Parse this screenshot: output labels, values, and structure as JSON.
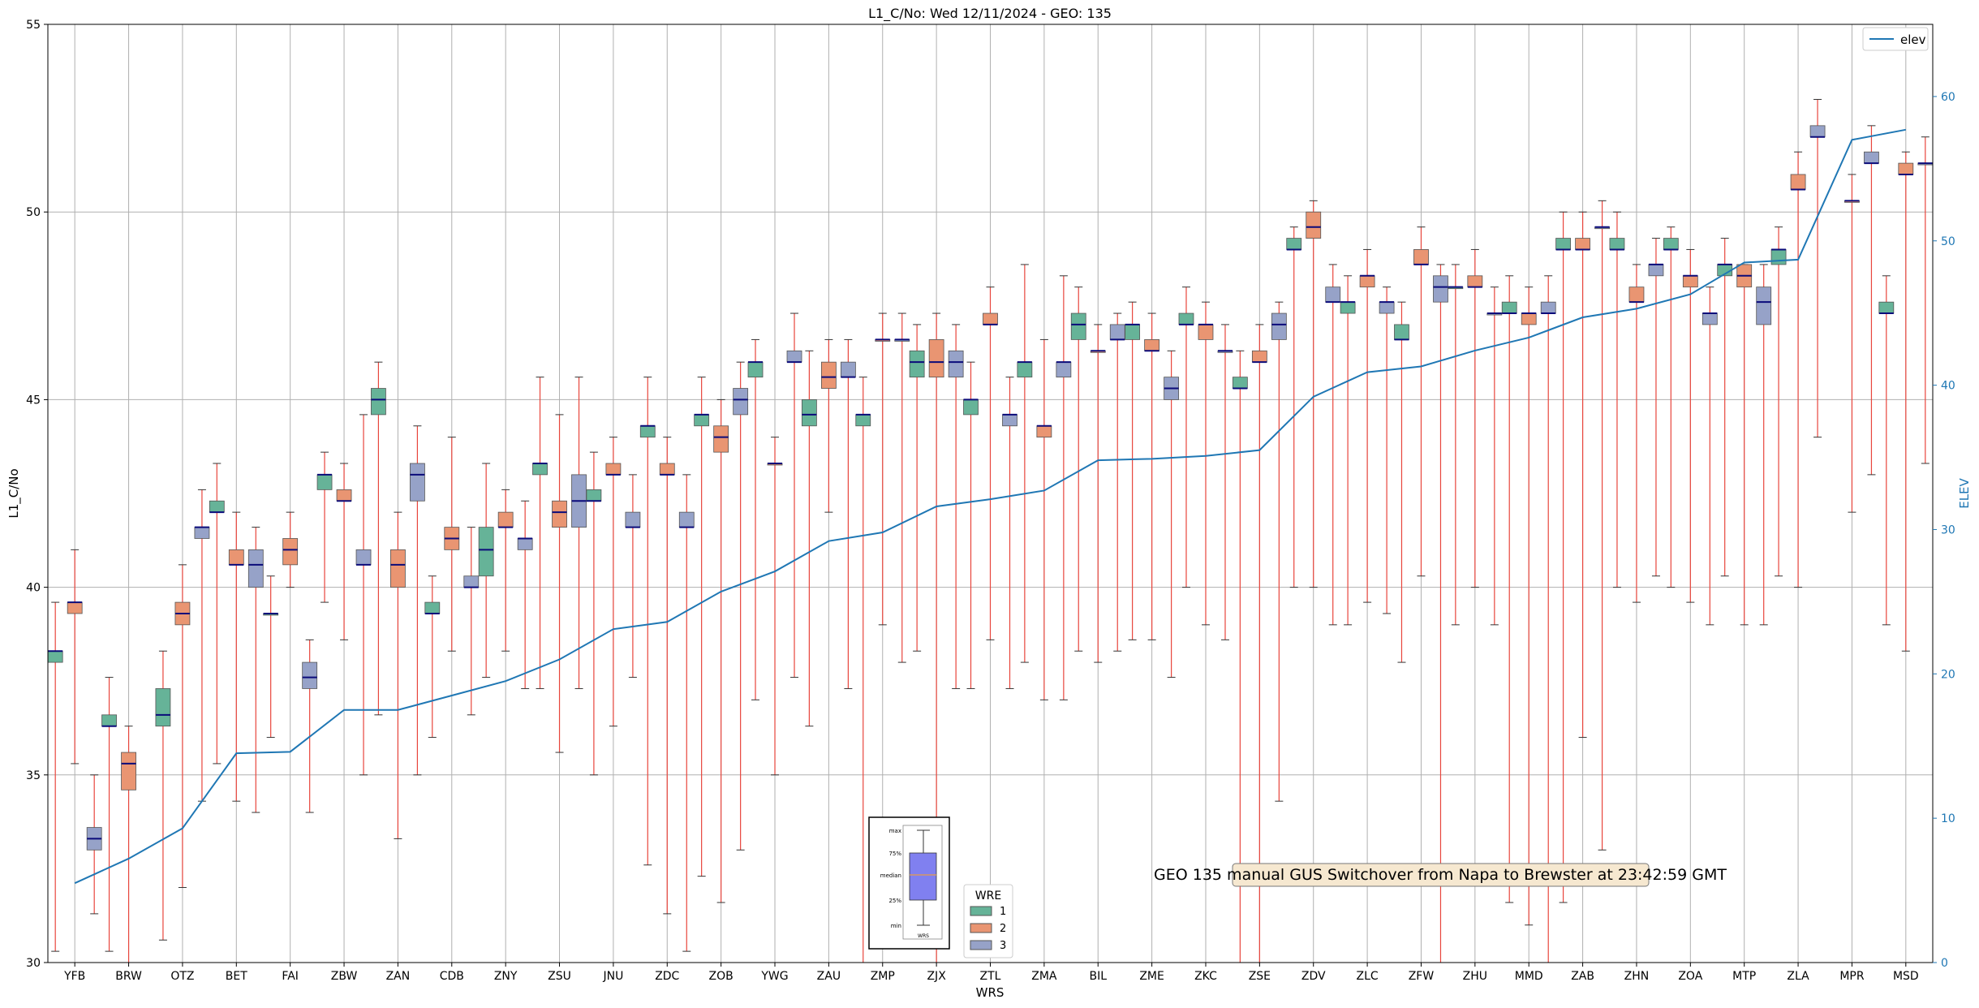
{
  "chart_data": {
    "type": "box",
    "title": "L1_C/No: Wed 12/11/2024 - GEO: 135",
    "xlabel": "WRS",
    "ylabel": "L1_C/No",
    "y2label": "ELEV",
    "ylim": [
      30,
      55
    ],
    "y2lim": [
      0,
      65
    ],
    "yticks": [
      30,
      35,
      40,
      45,
      50,
      55
    ],
    "y2ticks": [
      0,
      10,
      20,
      30,
      40,
      50,
      60
    ],
    "grid": true,
    "categories": [
      "YFB",
      "BRW",
      "OTZ",
      "BET",
      "FAI",
      "ZBW",
      "ZAN",
      "CDB",
      "ZNY",
      "ZSU",
      "JNU",
      "ZDC",
      "ZOB",
      "YWG",
      "ZAU",
      "ZMP",
      "ZJX",
      "ZTL",
      "ZMA",
      "BIL",
      "ZME",
      "ZKC",
      "ZSE",
      "ZDV",
      "ZLC",
      "ZFW",
      "ZHU",
      "MMD",
      "ZAB",
      "ZHN",
      "ZOA",
      "MTP",
      "ZLA",
      "MPR",
      "MSD"
    ],
    "wre_colors": {
      "1": "#66b398",
      "2": "#e99572",
      "3": "#96a2c8"
    },
    "whisker_color": "#e8453c",
    "median_color": "#0b0b7a",
    "elev_color": "#1f77b4",
    "boxes": [
      {
        "cat": 0,
        "wre": 1,
        "min": 30.3,
        "q1": 38.0,
        "med": 38.3,
        "q3": 38.3,
        "max": 39.6
      },
      {
        "cat": 0,
        "wre": 2,
        "min": 35.3,
        "q1": 39.3,
        "med": 39.6,
        "q3": 39.6,
        "max": 41.0
      },
      {
        "cat": 0,
        "wre": 3,
        "min": 31.3,
        "q1": 33.0,
        "med": 33.3,
        "q3": 33.6,
        "max": 35.0
      },
      {
        "cat": 1,
        "wre": 1,
        "min": 30.3,
        "q1": 36.3,
        "med": 36.3,
        "q3": 36.6,
        "max": 37.6
      },
      {
        "cat": 1,
        "wre": 2,
        "min": 30.0,
        "q1": 34.6,
        "med": 35.3,
        "q3": 35.6,
        "max": 36.3
      },
      {
        "cat": 2,
        "wre": 1,
        "min": 30.6,
        "q1": 36.3,
        "med": 36.6,
        "q3": 37.3,
        "max": 38.3
      },
      {
        "cat": 2,
        "wre": 2,
        "min": 32.0,
        "q1": 39.0,
        "med": 39.3,
        "q3": 39.6,
        "max": 40.6
      },
      {
        "cat": 2,
        "wre": 3,
        "min": 34.3,
        "q1": 41.3,
        "med": 41.6,
        "q3": 41.6,
        "max": 42.6
      },
      {
        "cat": 3,
        "wre": 1,
        "min": 35.3,
        "q1": 42.0,
        "med": 42.0,
        "q3": 42.3,
        "max": 43.3
      },
      {
        "cat": 3,
        "wre": 2,
        "min": 34.3,
        "q1": 40.6,
        "med": 40.6,
        "q3": 41.0,
        "max": 42.0
      },
      {
        "cat": 3,
        "wre": 3,
        "min": 34.0,
        "q1": 40.0,
        "med": 40.6,
        "q3": 41.0,
        "max": 41.6
      },
      {
        "cat": 4,
        "wre": 1,
        "min": 36.0,
        "q1": 39.3,
        "med": 39.3,
        "q3": 39.3,
        "max": 40.3
      },
      {
        "cat": 4,
        "wre": 2,
        "min": 40.0,
        "q1": 40.6,
        "med": 41.0,
        "q3": 41.3,
        "max": 42.0
      },
      {
        "cat": 4,
        "wre": 3,
        "min": 34.0,
        "q1": 37.3,
        "med": 37.6,
        "q3": 38.0,
        "max": 38.6
      },
      {
        "cat": 5,
        "wre": 1,
        "min": 39.6,
        "q1": 42.6,
        "med": 43.0,
        "q3": 43.0,
        "max": 43.6
      },
      {
        "cat": 5,
        "wre": 2,
        "min": 38.6,
        "q1": 42.3,
        "med": 42.3,
        "q3": 42.6,
        "max": 43.3
      },
      {
        "cat": 5,
        "wre": 3,
        "min": 35.0,
        "q1": 40.6,
        "med": 40.6,
        "q3": 41.0,
        "max": 44.6
      },
      {
        "cat": 6,
        "wre": 1,
        "min": 36.6,
        "q1": 44.6,
        "med": 45.0,
        "q3": 45.3,
        "max": 46.0
      },
      {
        "cat": 6,
        "wre": 2,
        "min": 33.3,
        "q1": 40.0,
        "med": 40.6,
        "q3": 41.0,
        "max": 42.0
      },
      {
        "cat": 6,
        "wre": 3,
        "min": 35.0,
        "q1": 42.3,
        "med": 43.0,
        "q3": 43.3,
        "max": 44.3
      },
      {
        "cat": 7,
        "wre": 1,
        "min": 36.0,
        "q1": 39.3,
        "med": 39.3,
        "q3": 39.6,
        "max": 40.3
      },
      {
        "cat": 7,
        "wre": 2,
        "min": 38.3,
        "q1": 41.0,
        "med": 41.3,
        "q3": 41.6,
        "max": 44.0
      },
      {
        "cat": 7,
        "wre": 3,
        "min": 36.6,
        "q1": 40.0,
        "med": 40.0,
        "q3": 40.3,
        "max": 41.6
      },
      {
        "cat": 8,
        "wre": 1,
        "min": 37.6,
        "q1": 40.3,
        "med": 41.0,
        "q3": 41.6,
        "max": 43.3
      },
      {
        "cat": 8,
        "wre": 2,
        "min": 38.3,
        "q1": 41.6,
        "med": 41.6,
        "q3": 42.0,
        "max": 42.6
      },
      {
        "cat": 8,
        "wre": 3,
        "min": 37.3,
        "q1": 41.0,
        "med": 41.3,
        "q3": 41.3,
        "max": 42.3
      },
      {
        "cat": 9,
        "wre": 1,
        "min": 37.3,
        "q1": 43.0,
        "med": 43.3,
        "q3": 43.3,
        "max": 45.6
      },
      {
        "cat": 9,
        "wre": 2,
        "min": 35.6,
        "q1": 41.6,
        "med": 42.0,
        "q3": 42.3,
        "max": 44.6
      },
      {
        "cat": 9,
        "wre": 3,
        "min": 37.3,
        "q1": 41.6,
        "med": 42.3,
        "q3": 43.0,
        "max": 45.6
      },
      {
        "cat": 10,
        "wre": 1,
        "min": 35.0,
        "q1": 42.3,
        "med": 42.3,
        "q3": 42.6,
        "max": 43.6
      },
      {
        "cat": 10,
        "wre": 2,
        "min": 36.3,
        "q1": 43.0,
        "med": 43.0,
        "q3": 43.3,
        "max": 44.0
      },
      {
        "cat": 10,
        "wre": 3,
        "min": 37.6,
        "q1": 41.6,
        "med": 41.6,
        "q3": 42.0,
        "max": 43.0
      },
      {
        "cat": 11,
        "wre": 1,
        "min": 32.6,
        "q1": 44.0,
        "med": 44.3,
        "q3": 44.3,
        "max": 45.6
      },
      {
        "cat": 11,
        "wre": 2,
        "min": 31.3,
        "q1": 43.0,
        "med": 43.0,
        "q3": 43.3,
        "max": 44.0
      },
      {
        "cat": 11,
        "wre": 3,
        "min": 30.3,
        "q1": 41.6,
        "med": 41.6,
        "q3": 42.0,
        "max": 43.0
      },
      {
        "cat": 12,
        "wre": 1,
        "min": 32.3,
        "q1": 44.3,
        "med": 44.6,
        "q3": 44.6,
        "max": 45.6
      },
      {
        "cat": 12,
        "wre": 2,
        "min": 31.6,
        "q1": 43.6,
        "med": 44.0,
        "q3": 44.3,
        "max": 45.0
      },
      {
        "cat": 12,
        "wre": 3,
        "min": 33.0,
        "q1": 44.6,
        "med": 45.0,
        "q3": 45.3,
        "max": 46.0
      },
      {
        "cat": 13,
        "wre": 1,
        "min": 37.0,
        "q1": 45.6,
        "med": 46.0,
        "q3": 46.0,
        "max": 46.6
      },
      {
        "cat": 13,
        "wre": 2,
        "min": 35.0,
        "q1": 43.3,
        "med": 43.3,
        "q3": 43.3,
        "max": 44.0
      },
      {
        "cat": 13,
        "wre": 3,
        "min": 37.6,
        "q1": 46.0,
        "med": 46.0,
        "q3": 46.3,
        "max": 47.3
      },
      {
        "cat": 14,
        "wre": 1,
        "min": 36.3,
        "q1": 44.3,
        "med": 44.6,
        "q3": 45.0,
        "max": 46.3
      },
      {
        "cat": 14,
        "wre": 2,
        "min": 42.0,
        "q1": 45.3,
        "med": 45.6,
        "q3": 46.0,
        "max": 46.6
      },
      {
        "cat": 14,
        "wre": 3,
        "min": 37.3,
        "q1": 45.6,
        "med": 45.6,
        "q3": 46.0,
        "max": 46.6
      },
      {
        "cat": 15,
        "wre": 1,
        "min": 30.0,
        "q1": 44.3,
        "med": 44.6,
        "q3": 44.6,
        "max": 45.6
      },
      {
        "cat": 15,
        "wre": 2,
        "min": 39.0,
        "q1": 46.6,
        "med": 46.6,
        "q3": 46.6,
        "max": 47.3
      },
      {
        "cat": 15,
        "wre": 3,
        "min": 38.0,
        "q1": 46.6,
        "med": 46.6,
        "q3": 46.6,
        "max": 47.3
      },
      {
        "cat": 16,
        "wre": 1,
        "min": 38.3,
        "q1": 45.6,
        "med": 46.0,
        "q3": 46.3,
        "max": 47.0
      },
      {
        "cat": 16,
        "wre": 2,
        "min": 30.0,
        "q1": 45.6,
        "med": 46.0,
        "q3": 46.6,
        "max": 47.3
      },
      {
        "cat": 16,
        "wre": 3,
        "min": 37.3,
        "q1": 45.6,
        "med": 46.0,
        "q3": 46.3,
        "max": 47.0
      },
      {
        "cat": 17,
        "wre": 1,
        "min": 37.3,
        "q1": 44.6,
        "med": 45.0,
        "q3": 45.0,
        "max": 46.0
      },
      {
        "cat": 17,
        "wre": 2,
        "min": 38.6,
        "q1": 47.0,
        "med": 47.0,
        "q3": 47.3,
        "max": 48.0
      },
      {
        "cat": 17,
        "wre": 3,
        "min": 37.3,
        "q1": 44.3,
        "med": 44.6,
        "q3": 44.6,
        "max": 45.6
      },
      {
        "cat": 18,
        "wre": 1,
        "min": 38.0,
        "q1": 45.6,
        "med": 46.0,
        "q3": 46.0,
        "max": 48.6
      },
      {
        "cat": 18,
        "wre": 2,
        "min": 37.0,
        "q1": 44.0,
        "med": 44.3,
        "q3": 44.3,
        "max": 46.6
      },
      {
        "cat": 18,
        "wre": 3,
        "min": 37.0,
        "q1": 45.6,
        "med": 46.0,
        "q3": 46.0,
        "max": 48.3
      },
      {
        "cat": 19,
        "wre": 1,
        "min": 38.3,
        "q1": 46.6,
        "med": 47.0,
        "q3": 47.3,
        "max": 48.0
      },
      {
        "cat": 19,
        "wre": 2,
        "min": 38.0,
        "q1": 46.3,
        "med": 46.3,
        "q3": 46.3,
        "max": 47.0
      },
      {
        "cat": 19,
        "wre": 3,
        "min": 38.3,
        "q1": 46.6,
        "med": 46.6,
        "q3": 47.0,
        "max": 47.3
      },
      {
        "cat": 20,
        "wre": 1,
        "min": 38.6,
        "q1": 46.6,
        "med": 47.0,
        "q3": 47.0,
        "max": 47.6
      },
      {
        "cat": 20,
        "wre": 2,
        "min": 38.6,
        "q1": 46.3,
        "med": 46.3,
        "q3": 46.6,
        "max": 47.3
      },
      {
        "cat": 20,
        "wre": 3,
        "min": 37.6,
        "q1": 45.0,
        "med": 45.3,
        "q3": 45.6,
        "max": 46.3
      },
      {
        "cat": 21,
        "wre": 1,
        "min": 40.0,
        "q1": 47.0,
        "med": 47.0,
        "q3": 47.3,
        "max": 48.0
      },
      {
        "cat": 21,
        "wre": 2,
        "min": 39.0,
        "q1": 46.6,
        "med": 47.0,
        "q3": 47.0,
        "max": 47.6
      },
      {
        "cat": 21,
        "wre": 3,
        "min": 38.6,
        "q1": 46.3,
        "med": 46.3,
        "q3": 46.3,
        "max": 47.0
      },
      {
        "cat": 22,
        "wre": 1,
        "min": 30.0,
        "q1": 45.3,
        "med": 45.3,
        "q3": 45.6,
        "max": 46.3
      },
      {
        "cat": 22,
        "wre": 2,
        "min": 30.0,
        "q1": 46.0,
        "med": 46.0,
        "q3": 46.3,
        "max": 47.0
      },
      {
        "cat": 22,
        "wre": 3,
        "min": 34.3,
        "q1": 46.6,
        "med": 47.0,
        "q3": 47.3,
        "max": 47.6
      },
      {
        "cat": 23,
        "wre": 1,
        "min": 40.0,
        "q1": 49.0,
        "med": 49.0,
        "q3": 49.3,
        "max": 49.6
      },
      {
        "cat": 23,
        "wre": 2,
        "min": 40.0,
        "q1": 49.3,
        "med": 49.6,
        "q3": 50.0,
        "max": 50.3
      },
      {
        "cat": 23,
        "wre": 3,
        "min": 39.0,
        "q1": 47.6,
        "med": 47.6,
        "q3": 48.0,
        "max": 48.6
      },
      {
        "cat": 24,
        "wre": 1,
        "min": 39.0,
        "q1": 47.3,
        "med": 47.6,
        "q3": 47.6,
        "max": 48.3
      },
      {
        "cat": 24,
        "wre": 2,
        "min": 39.6,
        "q1": 48.0,
        "med": 48.3,
        "q3": 48.3,
        "max": 49.0
      },
      {
        "cat": 24,
        "wre": 3,
        "min": 39.3,
        "q1": 47.3,
        "med": 47.6,
        "q3": 47.6,
        "max": 48.0
      },
      {
        "cat": 25,
        "wre": 1,
        "min": 38.0,
        "q1": 46.6,
        "med": 46.6,
        "q3": 47.0,
        "max": 47.6
      },
      {
        "cat": 25,
        "wre": 2,
        "min": 40.3,
        "q1": 48.6,
        "med": 48.6,
        "q3": 49.0,
        "max": 49.6
      },
      {
        "cat": 25,
        "wre": 3,
        "min": 30.0,
        "q1": 47.6,
        "med": 48.0,
        "q3": 48.3,
        "max": 48.6
      },
      {
        "cat": 26,
        "wre": 1,
        "min": 39.0,
        "q1": 48.0,
        "med": 48.0,
        "q3": 48.0,
        "max": 48.6
      },
      {
        "cat": 26,
        "wre": 2,
        "min": 40.0,
        "q1": 48.0,
        "med": 48.0,
        "q3": 48.3,
        "max": 49.0
      },
      {
        "cat": 26,
        "wre": 3,
        "min": 39.0,
        "q1": 47.3,
        "med": 47.3,
        "q3": 47.3,
        "max": 48.0
      },
      {
        "cat": 27,
        "wre": 1,
        "min": 31.6,
        "q1": 47.3,
        "med": 47.3,
        "q3": 47.6,
        "max": 48.3
      },
      {
        "cat": 27,
        "wre": 2,
        "min": 31.0,
        "q1": 47.0,
        "med": 47.3,
        "q3": 47.3,
        "max": 48.0
      },
      {
        "cat": 27,
        "wre": 3,
        "min": 30.0,
        "q1": 47.3,
        "med": 47.3,
        "q3": 47.6,
        "max": 48.3
      },
      {
        "cat": 28,
        "wre": 1,
        "min": 31.6,
        "q1": 49.0,
        "med": 49.0,
        "q3": 49.3,
        "max": 50.0
      },
      {
        "cat": 28,
        "wre": 2,
        "min": 36.0,
        "q1": 49.0,
        "med": 49.0,
        "q3": 49.3,
        "max": 50.0
      },
      {
        "cat": 28,
        "wre": 3,
        "min": 33.0,
        "q1": 49.6,
        "med": 49.6,
        "q3": 49.6,
        "max": 50.3
      },
      {
        "cat": 29,
        "wre": 1,
        "min": 40.0,
        "q1": 49.0,
        "med": 49.0,
        "q3": 49.3,
        "max": 50.0
      },
      {
        "cat": 29,
        "wre": 2,
        "min": 39.6,
        "q1": 47.6,
        "med": 47.6,
        "q3": 48.0,
        "max": 48.6
      },
      {
        "cat": 29,
        "wre": 3,
        "min": 40.3,
        "q1": 48.3,
        "med": 48.6,
        "q3": 48.6,
        "max": 49.3
      },
      {
        "cat": 30,
        "wre": 1,
        "min": 40.0,
        "q1": 49.0,
        "med": 49.0,
        "q3": 49.3,
        "max": 49.6
      },
      {
        "cat": 30,
        "wre": 2,
        "min": 39.6,
        "q1": 48.0,
        "med": 48.3,
        "q3": 48.3,
        "max": 49.0
      },
      {
        "cat": 30,
        "wre": 3,
        "min": 39.0,
        "q1": 47.0,
        "med": 47.3,
        "q3": 47.3,
        "max": 48.0
      },
      {
        "cat": 31,
        "wre": 1,
        "min": 40.3,
        "q1": 48.3,
        "med": 48.6,
        "q3": 48.6,
        "max": 49.3
      },
      {
        "cat": 31,
        "wre": 2,
        "min": 39.0,
        "q1": 48.0,
        "med": 48.3,
        "q3": 48.6,
        "max": 48.6
      },
      {
        "cat": 31,
        "wre": 3,
        "min": 39.0,
        "q1": 47.0,
        "med": 47.6,
        "q3": 48.0,
        "max": 48.6
      },
      {
        "cat": 32,
        "wre": 1,
        "min": 40.3,
        "q1": 48.6,
        "med": 49.0,
        "q3": 49.0,
        "max": 49.6
      },
      {
        "cat": 32,
        "wre": 2,
        "min": 40.0,
        "q1": 50.6,
        "med": 50.6,
        "q3": 51.0,
        "max": 51.6
      },
      {
        "cat": 32,
        "wre": 3,
        "min": 44.0,
        "q1": 52.0,
        "med": 52.0,
        "q3": 52.3,
        "max": 53.0
      },
      {
        "cat": 33,
        "wre": 2,
        "min": 42.0,
        "q1": 50.3,
        "med": 50.3,
        "q3": 50.3,
        "max": 51.0
      },
      {
        "cat": 33,
        "wre": 3,
        "min": 43.0,
        "q1": 51.3,
        "med": 51.3,
        "q3": 51.6,
        "max": 52.3
      },
      {
        "cat": 34,
        "wre": 1,
        "min": 39.0,
        "q1": 47.3,
        "med": 47.3,
        "q3": 47.6,
        "max": 48.3
      },
      {
        "cat": 34,
        "wre": 2,
        "min": 38.3,
        "q1": 51.0,
        "med": 51.0,
        "q3": 51.3,
        "max": 51.6
      },
      {
        "cat": 34,
        "wre": 3,
        "min": 43.3,
        "q1": 51.3,
        "med": 51.3,
        "q3": 51.3,
        "max": 52.0
      }
    ],
    "elev_series": {
      "name": "elev",
      "values": [
        5.5,
        7.2,
        9.3,
        14.5,
        14.6,
        17.5,
        17.5,
        18.5,
        19.5,
        21.0,
        23.1,
        23.6,
        25.7,
        27.1,
        29.2,
        29.8,
        31.6,
        32.1,
        32.7,
        34.8,
        34.9,
        35.1,
        35.5,
        39.2,
        40.9,
        41.3,
        42.4,
        43.3,
        44.7,
        45.3,
        46.3,
        48.5,
        48.7,
        57.0,
        57.7
      ]
    },
    "legend_elev": {
      "label": "elev",
      "placement": "top-right"
    },
    "legend_wre": {
      "title": "WRE",
      "entries": [
        "1",
        "2",
        "3"
      ],
      "placement": "bottom-center"
    },
    "key_box": {
      "labels": [
        "max",
        "75%",
        "median",
        "25%",
        "min"
      ],
      "xlabel": "WRS"
    },
    "annotation": "GEO 135 manual GUS Switchover from Napa to Brewster at 23:42:59 GMT"
  }
}
